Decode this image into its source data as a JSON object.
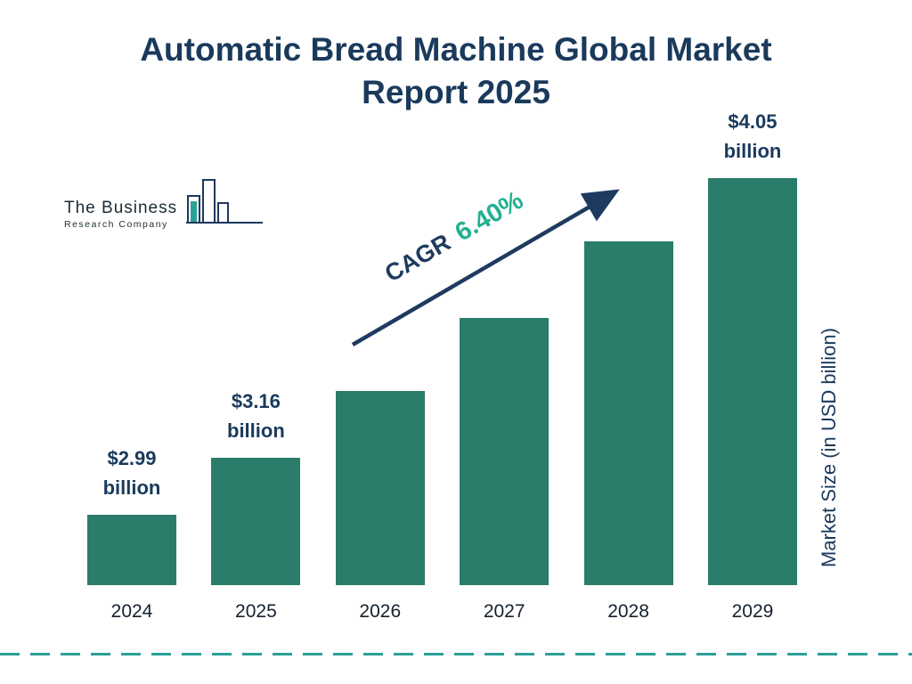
{
  "title": "Automatic Bread Machine Global Market Report 2025",
  "logo": {
    "line1": "The Business",
    "line2": "Research Company"
  },
  "cagr": {
    "prefix": "CAGR",
    "value": "6.40%"
  },
  "y_axis_label": "Market Size (in USD billion)",
  "chart_data": {
    "type": "bar",
    "title": "Automatic Bread Machine Global Market Report 2025",
    "categories": [
      "2024",
      "2025",
      "2026",
      "2027",
      "2028",
      "2029"
    ],
    "values": [
      2.99,
      3.16,
      3.36,
      3.58,
      3.81,
      4.05
    ],
    "value_labels": [
      {
        "line1": "$2.99",
        "line2": "billion"
      },
      {
        "line1": "$3.16",
        "line2": "billion"
      },
      null,
      null,
      null,
      {
        "line1": "$4.05",
        "line2": "billion"
      }
    ],
    "cagr_annotation": "CAGR 6.40%",
    "xlabel": "",
    "ylabel": "Market Size (in USD billion)",
    "legend": "none",
    "grid": false,
    "colors": {
      "bar": "#2a7c6b",
      "title_navy": "#1a3a5c",
      "cagr_green": "#25b093",
      "arrow_navy": "#1e3a5f",
      "divider_teal": "#2aa197"
    }
  }
}
